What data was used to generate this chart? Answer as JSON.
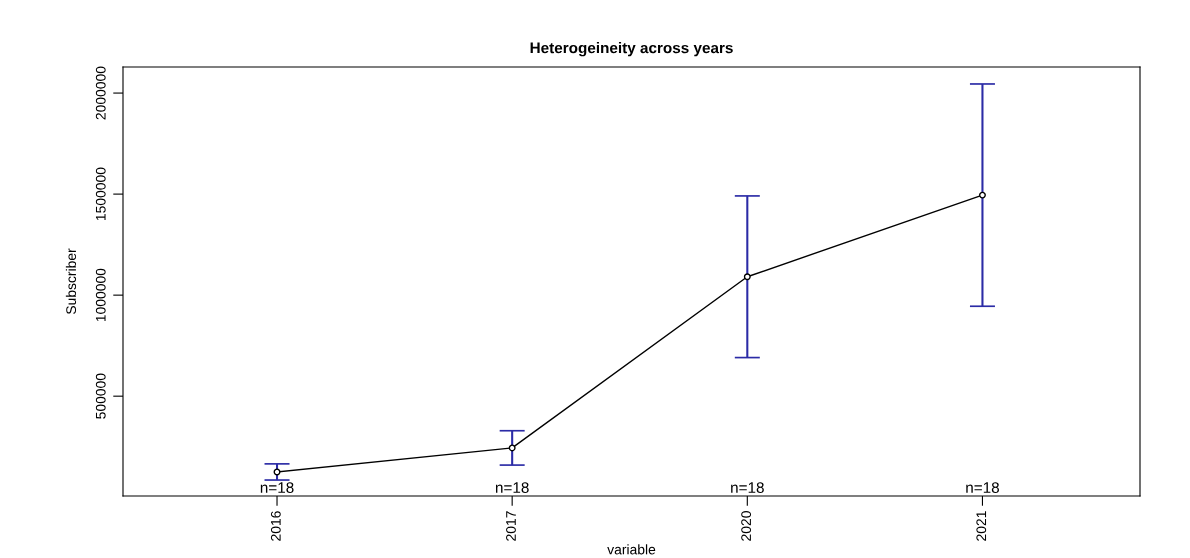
{
  "chart_data": {
    "type": "line",
    "title": "Heterogeineity across years",
    "xlabel": "variable",
    "ylabel": "Subscriber",
    "categories": [
      "2016",
      "2017",
      "2020",
      "2021"
    ],
    "series": [
      {
        "color": "#000000",
        "values": [
          125000,
          244000,
          1091000,
          1495000
        ],
        "errors": [
          40000,
          85000,
          400000,
          550000
        ]
      }
    ],
    "marker": "circle",
    "line_style": "solid",
    "grid": false,
    "legend": false,
    "ylim": [
      6000,
      2129000
    ],
    "yticks": [
      500000,
      1000000,
      1500000,
      2000000
    ],
    "annotations": [
      "n=18",
      "n=18",
      "n=18",
      "n=18"
    ]
  }
}
